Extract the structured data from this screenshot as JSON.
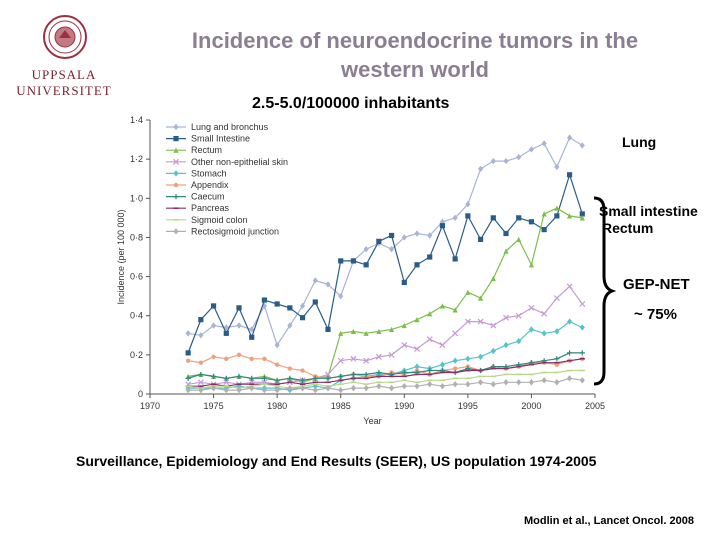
{
  "header": {
    "title": "Incidence of neuroendocrine tumors in the western world",
    "subtitle": "2.5-5.0/100000 inhabitants"
  },
  "logo": {
    "line1": "UPPSALA",
    "line2": "UNIVERSITET"
  },
  "annotations": {
    "lung": "Lung",
    "small_intestine": "Small intestine",
    "rectum": "Rectum",
    "gep_net": "GEP-NET",
    "gep_pct": "~ 75%"
  },
  "footer": {
    "source": "Surveillance, Epidemiology and End Results (SEER), US population 1974-2005",
    "citation": "Modlin et al., Lancet Oncol. 2008"
  },
  "chart_data": {
    "type": "line",
    "xlabel": "Year",
    "ylabel": "Incidence (per 100 000)",
    "xlim": [
      1970,
      2005
    ],
    "ylim": [
      0,
      1.4
    ],
    "x_ticks": [
      "1970",
      "1975",
      "1980",
      "1985",
      "1990",
      "1995",
      "2000",
      "2005"
    ],
    "y_ticks": [
      "0",
      "0·2",
      "0·4",
      "0·6",
      "0·8",
      "1·0",
      "1·2",
      "1·4"
    ],
    "legend_position": "top-left",
    "x": [
      1973,
      1974,
      1975,
      1976,
      1977,
      1978,
      1979,
      1980,
      1981,
      1982,
      1983,
      1984,
      1985,
      1986,
      1987,
      1988,
      1989,
      1990,
      1991,
      1992,
      1993,
      1994,
      1995,
      1996,
      1997,
      1998,
      1999,
      2000,
      2001,
      2002,
      2003,
      2004
    ],
    "series": [
      {
        "name": "Lung and bronchus",
        "color": "#a9b4d6",
        "marker": "diamond",
        "values": [
          0.31,
          0.3,
          0.35,
          0.34,
          0.35,
          0.33,
          0.45,
          0.25,
          0.35,
          0.45,
          0.58,
          0.56,
          0.5,
          0.68,
          0.74,
          0.77,
          0.74,
          0.8,
          0.82,
          0.81,
          0.88,
          0.9,
          0.97,
          1.15,
          1.19,
          1.19,
          1.21,
          1.25,
          1.28,
          1.16,
          1.31,
          1.27
        ]
      },
      {
        "name": "Small Intestine",
        "color": "#2a5c8a",
        "marker": "square",
        "values": [
          0.21,
          0.38,
          0.45,
          0.31,
          0.44,
          0.29,
          0.48,
          0.46,
          0.44,
          0.39,
          0.47,
          0.33,
          0.68,
          0.68,
          0.66,
          0.78,
          0.81,
          0.57,
          0.66,
          0.7,
          0.86,
          0.69,
          0.91,
          0.79,
          0.9,
          0.82,
          0.9,
          0.88,
          0.84,
          0.91,
          1.12,
          0.92
        ]
      },
      {
        "name": "Rectum",
        "color": "#7bbf4a",
        "marker": "triangle",
        "values": [
          0.09,
          0.1,
          0.09,
          0.08,
          0.09,
          0.08,
          0.09,
          0.07,
          0.08,
          0.06,
          0.08,
          0.09,
          0.31,
          0.32,
          0.31,
          0.32,
          0.33,
          0.35,
          0.38,
          0.41,
          0.45,
          0.43,
          0.52,
          0.49,
          0.59,
          0.73,
          0.79,
          0.66,
          0.92,
          0.95,
          0.91,
          0.9
        ]
      },
      {
        "name": "Other non-epithelial skin",
        "color": "#c79ad6",
        "marker": "x",
        "values": [
          0.05,
          0.06,
          0.05,
          0.06,
          0.05,
          0.06,
          0.06,
          0.05,
          0.06,
          0.07,
          0.08,
          0.1,
          0.17,
          0.18,
          0.17,
          0.19,
          0.2,
          0.25,
          0.23,
          0.28,
          0.25,
          0.31,
          0.37,
          0.37,
          0.35,
          0.39,
          0.4,
          0.44,
          0.41,
          0.49,
          0.55,
          0.46
        ]
      },
      {
        "name": "Stomach",
        "color": "#55c3cc",
        "marker": "diamond",
        "values": [
          0.03,
          0.03,
          0.03,
          0.03,
          0.04,
          0.03,
          0.03,
          0.03,
          0.02,
          0.03,
          0.04,
          0.03,
          0.07,
          0.08,
          0.09,
          0.1,
          0.1,
          0.12,
          0.14,
          0.13,
          0.15,
          0.17,
          0.18,
          0.19,
          0.22,
          0.25,
          0.27,
          0.33,
          0.31,
          0.32,
          0.37,
          0.34
        ]
      },
      {
        "name": "Appendix",
        "color": "#f2a07b",
        "marker": "dot",
        "values": [
          0.17,
          0.16,
          0.19,
          0.18,
          0.2,
          0.18,
          0.18,
          0.15,
          0.13,
          0.12,
          0.09,
          0.08,
          0.09,
          0.1,
          0.09,
          0.09,
          0.11,
          0.1,
          0.12,
          0.1,
          0.12,
          0.13,
          0.14,
          0.12,
          0.14,
          0.13,
          0.14,
          0.16,
          0.16,
          0.15,
          0.17,
          0.18
        ]
      },
      {
        "name": "Caecum",
        "color": "#2e8a7a",
        "marker": "plus",
        "values": [
          0.08,
          0.1,
          0.09,
          0.08,
          0.09,
          0.08,
          0.08,
          0.07,
          0.08,
          0.07,
          0.08,
          0.08,
          0.09,
          0.1,
          0.1,
          0.11,
          0.1,
          0.11,
          0.11,
          0.12,
          0.12,
          0.11,
          0.13,
          0.12,
          0.14,
          0.14,
          0.15,
          0.16,
          0.17,
          0.18,
          0.21,
          0.21
        ]
      },
      {
        "name": "Pancreas",
        "color": "#8a2e6a",
        "marker": "dash",
        "values": [
          0.04,
          0.04,
          0.05,
          0.04,
          0.05,
          0.05,
          0.05,
          0.05,
          0.06,
          0.05,
          0.06,
          0.06,
          0.07,
          0.08,
          0.08,
          0.09,
          0.09,
          0.09,
          0.1,
          0.1,
          0.11,
          0.11,
          0.12,
          0.12,
          0.13,
          0.13,
          0.14,
          0.15,
          0.16,
          0.16,
          0.17,
          0.18
        ]
      },
      {
        "name": "Sigmoid colon",
        "color": "#b9d98a",
        "marker": "dash",
        "values": [
          0.04,
          0.03,
          0.04,
          0.04,
          0.03,
          0.04,
          0.05,
          0.04,
          0.03,
          0.04,
          0.05,
          0.04,
          0.05,
          0.06,
          0.05,
          0.06,
          0.06,
          0.07,
          0.06,
          0.07,
          0.07,
          0.08,
          0.08,
          0.09,
          0.09,
          0.1,
          0.1,
          0.1,
          0.11,
          0.11,
          0.12,
          0.12
        ]
      },
      {
        "name": "Rectosigmoid junction",
        "color": "#b0b0b0",
        "marker": "diamond",
        "values": [
          0.02,
          0.02,
          0.03,
          0.02,
          0.02,
          0.03,
          0.02,
          0.02,
          0.03,
          0.03,
          0.02,
          0.03,
          0.02,
          0.03,
          0.03,
          0.04,
          0.03,
          0.04,
          0.04,
          0.05,
          0.04,
          0.05,
          0.05,
          0.06,
          0.05,
          0.06,
          0.06,
          0.06,
          0.07,
          0.06,
          0.08,
          0.07
        ]
      }
    ]
  }
}
